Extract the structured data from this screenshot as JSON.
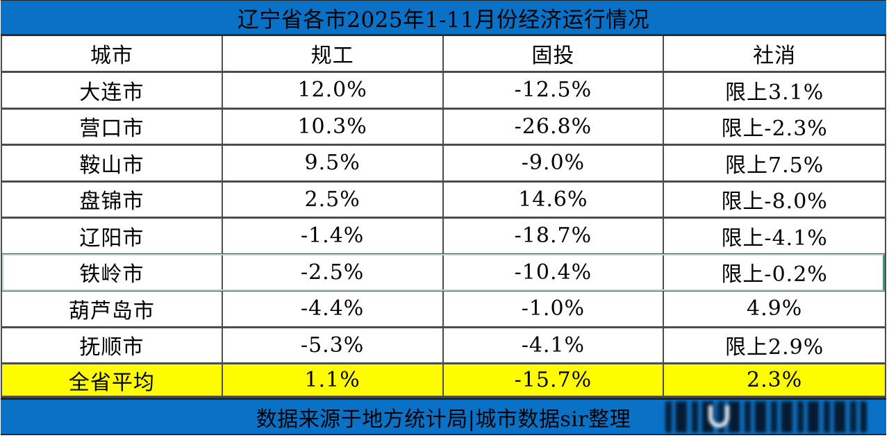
{
  "chart_data": {
    "type": "table",
    "title": "辽宁省各市2025年1-11月份经济运行情况",
    "columns": [
      "城市",
      "规工",
      "固投",
      "社消"
    ],
    "rows": [
      {
        "city": "大连市",
        "guigong": "12.0%",
        "gutou": "-12.5%",
        "shexiao": "限上3.1%"
      },
      {
        "city": "营口市",
        "guigong": "10.3%",
        "gutou": "-26.8%",
        "shexiao": "限上-2.3%"
      },
      {
        "city": "鞍山市",
        "guigong": "9.5%",
        "gutou": "-9.0%",
        "shexiao": "限上7.5%"
      },
      {
        "city": "盘锦市",
        "guigong": "2.5%",
        "gutou": "14.6%",
        "shexiao": "限上-8.0%"
      },
      {
        "city": "辽阳市",
        "guigong": "-1.4%",
        "gutou": "-18.7%",
        "shexiao": "限上-4.1%"
      },
      {
        "city": "铁岭市",
        "guigong": "-2.5%",
        "gutou": "-10.4%",
        "shexiao": "限上-0.2%"
      },
      {
        "city": "葫芦岛市",
        "guigong": "-4.4%",
        "gutou": "-1.0%",
        "shexiao": "4.9%"
      },
      {
        "city": "抚顺市",
        "guigong": "-5.3%",
        "gutou": "-4.1%",
        "shexiao": "限上2.9%"
      }
    ],
    "summary_row": {
      "city": "全省平均",
      "guigong": "1.1%",
      "gutou": "-15.7%",
      "shexiao": "2.3%"
    },
    "highlighted_row_city": "铁岭市",
    "source_note": "数据来源于地方统计局|城市数据sir整理",
    "legend_position": "none",
    "grid": true
  },
  "colors": {
    "title_bar_blue": "#0a72c6",
    "summary_yellow": "#fdfd00",
    "grid_line_gray": "#4c4c4c",
    "selection_teal": "#2f9e82",
    "text_black": "#000000"
  }
}
